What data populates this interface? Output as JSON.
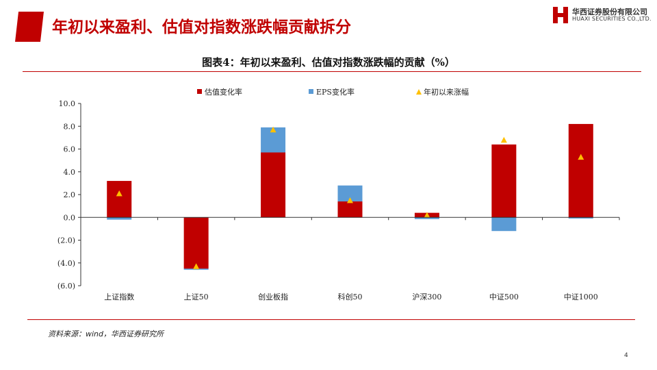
{
  "header": {
    "title": "年初以来盈利、估值对指数涨跌幅贡献拆分",
    "logo_cn": "华西证券股份有限公司",
    "logo_en": "HUAXI SECURITIES CO.,LTD."
  },
  "source": "资料来源：wind，华西证券研究所",
  "page_number": "4",
  "colors": {
    "accent": "#c00000",
    "pe": "#c00000",
    "eps": "#5b9bd5",
    "ret": "#ffc000"
  },
  "chart_data": {
    "type": "bar",
    "title": "图表4：年初以来盈利、估值对指数涨跌幅的贡献（%）",
    "categories": [
      "上证指数",
      "上证50",
      "创业板指",
      "科创50",
      "沪深300",
      "中证500",
      "中证1000"
    ],
    "series": [
      {
        "name": "估值变化率",
        "kind": "bar",
        "values": [
          3.2,
          -4.5,
          5.7,
          1.4,
          0.4,
          6.4,
          8.2
        ]
      },
      {
        "name": "EPS变化率",
        "kind": "bar",
        "values": [
          -0.2,
          -0.1,
          2.2,
          1.4,
          -0.15,
          -1.2,
          -0.1
        ]
      },
      {
        "name": "年初以来涨幅",
        "kind": "marker",
        "values": [
          2.1,
          -4.3,
          7.7,
          1.5,
          0.2,
          6.8,
          5.3
        ]
      }
    ],
    "ylim": [
      -6,
      10
    ],
    "yticks": [
      10,
      8,
      6,
      4,
      2,
      0,
      -2,
      -4,
      -6
    ],
    "ytick_labels": [
      "10.0",
      "8.0",
      "6.0",
      "4.0",
      "2.0",
      "0.0",
      "(2.0)",
      "(4.0)",
      "(6.0)"
    ],
    "legend_position": "top",
    "grid": false
  }
}
